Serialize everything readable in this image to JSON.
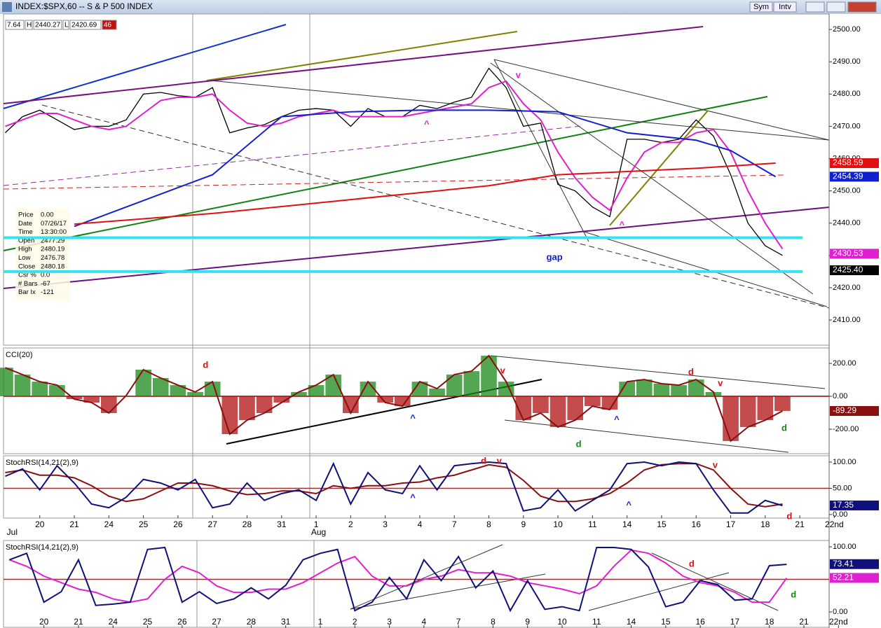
{
  "window": {
    "title": "INDEX:$SPX,60 -- S & P 500 INDEX",
    "buttons": [
      "Sym",
      "Intv"
    ]
  },
  "quote_bar": [
    "7.64",
    "H",
    "2440.27",
    "L",
    "2420.69",
    "46"
  ],
  "info_box": [
    [
      "Price",
      "0.00"
    ],
    [
      "Date",
      "07/26/17"
    ],
    [
      "Time",
      "13:30:00"
    ],
    [
      "Open",
      "2477.29"
    ],
    [
      "High",
      "2480.19"
    ],
    [
      "Low",
      "2476.78"
    ],
    [
      "Close",
      "2480.18"
    ],
    [
      "Csr %",
      "0.0"
    ],
    [
      "# Bars",
      "-67"
    ],
    [
      "Bar Ix",
      "-121"
    ]
  ],
  "chart_data": [
    {
      "type": "line",
      "xlim": [
        -1.05,
        22.85
      ],
      "ylim": [
        2402.2,
        2504.8
      ],
      "yticks": [
        {
          "value": 2500,
          "label": "2500.00"
        },
        {
          "value": 2490,
          "label": "2490.00"
        },
        {
          "value": 2480,
          "label": "2480.00"
        },
        {
          "value": 2470,
          "label": "2470.00"
        },
        {
          "value": 2460,
          "label": "2460.00"
        },
        {
          "value": 2450,
          "label": "2450.00"
        },
        {
          "value": 2440,
          "label": "2440.00"
        },
        {
          "value": 2430,
          "label": "2430.00"
        },
        {
          "value": 2420,
          "label": "2420.00"
        },
        {
          "value": 2410,
          "label": "2410.00"
        }
      ],
      "x": [
        -1,
        -0.5,
        0,
        0.5,
        1,
        1.5,
        2,
        2.5,
        3,
        3.5,
        4,
        4.5,
        5,
        5.5,
        6,
        6.5,
        7,
        7.5,
        8,
        8.5,
        9,
        9.5,
        10,
        10.5,
        11,
        11.5,
        12,
        12.5,
        13,
        13.5,
        14,
        14.5,
        15,
        15.5,
        16,
        16.5,
        17,
        17.5,
        18,
        18.5,
        19,
        19.5,
        20,
        20.5,
        21,
        21.5
      ],
      "hlines": [
        {
          "value": 2435.5,
          "color": "#33e4f0"
        },
        {
          "value": 2425,
          "color": "#33e4f0"
        }
      ],
      "series": [
        {
          "color": "#000000",
          "values": [
            2468,
            2473,
            2475,
            2472,
            2469,
            2470,
            2470,
            2472,
            2480,
            2480.5,
            2479.5,
            2479,
            2482,
            2468,
            2469.5,
            2470.5,
            2473,
            2475,
            2475.5,
            2475,
            2470,
            2475.5,
            2473,
            2473,
            2476.5,
            2475.5,
            2477.5,
            2479,
            2488,
            2482,
            2470,
            2471,
            2452,
            2450,
            2445,
            2442,
            2466,
            2466,
            2465,
            2466,
            2472,
            2467,
            2455,
            2440,
            2433,
            2430
          ],
          "last": {
            "value": 2425.4,
            "label": "2425.40"
          }
        },
        {
          "color": "#e020d0",
          "values": [
            2470,
            2472,
            2474,
            2474,
            2472,
            2470,
            2469,
            2470,
            2474,
            2478,
            2479,
            2479,
            2480,
            2475,
            2471,
            2470,
            2471,
            2473,
            2474,
            2475,
            2473,
            2473,
            2473,
            2473,
            2474,
            2475,
            2476,
            2477,
            2482,
            2484,
            2477,
            2472,
            2462,
            2454,
            2448,
            2444,
            2454,
            2462,
            2465,
            2465,
            2468,
            2469,
            2462,
            2450,
            2440,
            2432
          ],
          "last": 2430.53
        },
        {
          "color": "#1020d0",
          "x": [
            1,
            5,
            7,
            9,
            11,
            13,
            15,
            17,
            19,
            20,
            21.3
          ],
          "values": [
            2439,
            2455,
            2473,
            2474.5,
            2475,
            2475,
            2474.5,
            2468,
            2465.7,
            2462.5,
            2454.4
          ],
          "last": 2454.39
        },
        {
          "color": "#e01010",
          "x": [
            1,
            5,
            9,
            13,
            15,
            17,
            19,
            21.3
          ],
          "values": [
            2439.7,
            2443,
            2447.3,
            2451.6,
            2455,
            2456,
            2457,
            2458.6
          ],
          "last": 2458.59
        }
      ],
      "annotations": [
        {
          "text": "v",
          "x": 13.85,
          "y": 2485.7,
          "color": "#e020d0"
        },
        {
          "text": "^",
          "x": 11.2,
          "y": 2470.5,
          "color": "#e020d0"
        },
        {
          "text": "^",
          "x": 16.85,
          "y": 2439.3,
          "color": "#e020d0"
        },
        {
          "text": "gap",
          "x": 14.9,
          "y": 2429.3,
          "color": "#1020d0"
        }
      ]
    },
    {
      "type": "bar",
      "title": "CCI(20)",
      "xlim": [
        -1.05,
        22.85
      ],
      "ylim": [
        -349,
        294
      ],
      "yticks": [
        {
          "value": 200,
          "label": "200.00"
        },
        {
          "value": 0,
          "label": "0.00"
        },
        {
          "value": -200,
          "label": "-200.00"
        }
      ],
      "x": [
        -1,
        -0.5,
        0,
        0.5,
        1,
        1.5,
        2,
        2.5,
        3,
        3.5,
        4,
        4.5,
        5,
        5.5,
        6,
        6.5,
        7,
        7.5,
        8,
        8.5,
        9,
        9.5,
        10,
        10.5,
        11,
        11.5,
        12,
        12.5,
        13,
        13.5,
        14,
        14.5,
        15,
        15.5,
        16,
        16.5,
        17,
        17.5,
        18,
        18.5,
        19,
        19.5,
        20,
        20.5,
        21,
        21.5
      ],
      "hlines": [
        {
          "value": 0,
          "color": "#900000"
        }
      ],
      "series": [
        {
          "color": "#8a1010",
          "pos_color": "#1a8a1a",
          "neg_color": "#b01010",
          "values": [
            174,
            132,
            89,
            68,
            -17,
            -38,
            -102,
            4,
            162,
            111,
            68,
            26,
            89,
            -230,
            -145,
            -102,
            -38,
            26,
            68,
            132,
            -102,
            89,
            -38,
            -60,
            89,
            47,
            132,
            153,
            247,
            89,
            -145,
            -102,
            -187,
            -145,
            -60,
            -81,
            89,
            102,
            77,
            68,
            102,
            26,
            -272,
            -187,
            -145,
            -89
          ],
          "last": -89.29
        }
      ],
      "annotations": [
        {
          "text": "d",
          "x": 4.8,
          "y": 187,
          "color": "#e01010"
        },
        {
          "text": "^",
          "x": 10.8,
          "y": -136,
          "color": "#1020d0"
        },
        {
          "text": "v",
          "x": 13.4,
          "y": 153,
          "color": "#e01010"
        },
        {
          "text": "d",
          "x": 15.6,
          "y": -294,
          "color": "#108a10"
        },
        {
          "text": "^",
          "x": 16.7,
          "y": -145,
          "color": "#1020d0"
        },
        {
          "text": "d",
          "x": 18.85,
          "y": 145,
          "color": "#e01010"
        },
        {
          "text": "v",
          "x": 19.7,
          "y": 77,
          "color": "#e01010"
        },
        {
          "text": "d",
          "x": 21.55,
          "y": -196,
          "color": "#108a10"
        }
      ]
    },
    {
      "type": "line",
      "title": "StochRSI(14,21(2),9)",
      "xlim": [
        -1.05,
        22.85
      ],
      "ylim": [
        -6.7,
        112
      ],
      "yticks": [
        {
          "value": 100,
          "label": "100.00"
        },
        {
          "value": 50,
          "label": "50.00"
        },
        {
          "value": 0,
          "label": "0.00"
        }
      ],
      "xticks": [
        {
          "value": 0,
          "label": "20"
        },
        {
          "value": 1,
          "label": "21"
        },
        {
          "value": 2,
          "label": "24"
        },
        {
          "value": 3,
          "label": "25"
        },
        {
          "value": 4,
          "label": "26"
        },
        {
          "value": 5,
          "label": "27"
        },
        {
          "value": 6,
          "label": "28"
        },
        {
          "value": 7,
          "label": "31"
        },
        {
          "value": 8,
          "label": "1"
        },
        {
          "value": 9,
          "label": "2"
        },
        {
          "value": 10,
          "label": "3"
        },
        {
          "value": 11,
          "label": "4"
        },
        {
          "value": 12,
          "label": "7"
        },
        {
          "value": 13,
          "label": "8"
        },
        {
          "value": 14,
          "label": "9"
        },
        {
          "value": 15,
          "label": "10"
        },
        {
          "value": 16,
          "label": "11"
        },
        {
          "value": 17,
          "label": "14"
        },
        {
          "value": 18,
          "label": "15"
        },
        {
          "value": 19,
          "label": "16"
        },
        {
          "value": 20,
          "label": "17"
        },
        {
          "value": 21,
          "label": "18"
        },
        {
          "value": 22,
          "label": "21"
        },
        {
          "value": 23,
          "label": "22nd"
        }
      ],
      "month_labels": [
        {
          "value": -0.8,
          "label": "Jul"
        },
        {
          "value": 8.07,
          "label": "Aug"
        }
      ],
      "x": [
        -1,
        -0.5,
        0,
        0.5,
        1,
        1.5,
        2,
        2.5,
        3,
        3.5,
        4,
        4.5,
        5,
        5.5,
        6,
        6.5,
        7,
        7.5,
        8,
        8.5,
        9,
        9.5,
        10,
        10.5,
        11,
        11.5,
        12,
        12.5,
        13,
        13.5,
        14,
        14.5,
        15,
        15.5,
        16,
        16.5,
        17,
        17.5,
        18,
        18.5,
        19,
        19.5,
        20,
        20.5,
        21,
        21.5
      ],
      "hlines": [
        {
          "value": 50,
          "color": "#e01010"
        }
      ],
      "series": [
        {
          "color": "#8a1010",
          "values": [
            80,
            85,
            75,
            75,
            70,
            55,
            35,
            25,
            30,
            45,
            60,
            60,
            55,
            45,
            38,
            40,
            45,
            45,
            40,
            55,
            50,
            55,
            55,
            60,
            62,
            70,
            75,
            85,
            95,
            90,
            65,
            35,
            25,
            25,
            30,
            40,
            60,
            85,
            95,
            97,
            97,
            85,
            50,
            20,
            15,
            20
          ]
        },
        {
          "color": "#10107a",
          "values": [
            73,
            87,
            47,
            93,
            60,
            20,
            13,
            33,
            67,
            60,
            47,
            67,
            13,
            20,
            60,
            27,
            40,
            47,
            27,
            97,
            20,
            80,
            47,
            40,
            93,
            47,
            93,
            97,
            100,
            97,
            7,
            13,
            47,
            7,
            27,
            47,
            97,
            100,
            93,
            100,
            97,
            47,
            3,
            3,
            27,
            17
          ],
          "last": 17.35
        }
      ],
      "annotations": [
        {
          "text": "^",
          "x": 10.8,
          "y": 31,
          "color": "#1020d0"
        },
        {
          "text": "d",
          "x": 12.85,
          "y": 101,
          "color": "#e01010"
        },
        {
          "text": "v",
          "x": 13.3,
          "y": 101,
          "color": "#e01010"
        },
        {
          "text": "^",
          "x": 17.05,
          "y": 17,
          "color": "#1020d0"
        },
        {
          "text": "v",
          "x": 19.55,
          "y": 93,
          "color": "#e01010"
        },
        {
          "text": "d",
          "x": 21.7,
          "y": -4,
          "color": "#e01010"
        }
      ]
    },
    {
      "type": "line",
      "title": "StochRSI(14,21(2),9)",
      "xlim": [
        -1.17,
        22.73
      ],
      "ylim": [
        -24.7,
        109.7
      ],
      "yticks": [
        {
          "value": 100,
          "label": "100.00"
        },
        {
          "value": 0,
          "label": "0.00"
        }
      ],
      "xticks": [
        {
          "value": 0,
          "label": "20"
        },
        {
          "value": 1,
          "label": "21"
        },
        {
          "value": 2,
          "label": "24"
        },
        {
          "value": 3,
          "label": "25"
        },
        {
          "value": 4,
          "label": "26"
        },
        {
          "value": 5,
          "label": "27"
        },
        {
          "value": 6,
          "label": "28"
        },
        {
          "value": 7,
          "label": "31"
        },
        {
          "value": 8,
          "label": "1"
        },
        {
          "value": 9,
          "label": "2"
        },
        {
          "value": 10,
          "label": "3"
        },
        {
          "value": 11,
          "label": "4"
        },
        {
          "value": 12,
          "label": "7"
        },
        {
          "value": 13,
          "label": "8"
        },
        {
          "value": 14,
          "label": "9"
        },
        {
          "value": 15,
          "label": "10"
        },
        {
          "value": 16,
          "label": "11"
        },
        {
          "value": 17,
          "label": "14"
        },
        {
          "value": 18,
          "label": "15"
        },
        {
          "value": 19,
          "label": "16"
        },
        {
          "value": 20,
          "label": "17"
        },
        {
          "value": 21,
          "label": "18"
        },
        {
          "value": 22,
          "label": "21"
        },
        {
          "value": 23,
          "label": "22nd"
        }
      ],
      "x": [
        -1,
        -0.5,
        0,
        0.5,
        1,
        1.5,
        2,
        2.5,
        3,
        3.5,
        4,
        4.5,
        5,
        5.5,
        6,
        6.5,
        7,
        7.5,
        8,
        8.5,
        9,
        9.5,
        10,
        10.5,
        11,
        11.5,
        12,
        12.5,
        13,
        13.5,
        14,
        14.5,
        15,
        15.5,
        16,
        16.5,
        17,
        17.5,
        18,
        18.5,
        19,
        19.5,
        20,
        20.5,
        21,
        21.5
      ],
      "hlines": [
        {
          "value": 50,
          "color": "#e01010"
        }
      ],
      "series": [
        {
          "color": "#e020d0",
          "values": [
            80,
            70,
            55,
            45,
            35,
            30,
            20,
            15,
            20,
            50,
            70,
            60,
            40,
            30,
            30,
            35,
            35,
            45,
            60,
            75,
            85,
            55,
            40,
            40,
            50,
            55,
            65,
            60,
            60,
            55,
            45,
            40,
            35,
            28,
            40,
            70,
            95,
            90,
            75,
            55,
            45,
            40,
            30,
            15,
            15,
            52
          ],
          "last": 52.21
        },
        {
          "color": "#10107a",
          "values": [
            80,
            90,
            15,
            31,
            80,
            10,
            12,
            15,
            96,
            99,
            15,
            31,
            13,
            20,
            37,
            20,
            41,
            80,
            90,
            96,
            2,
            15,
            53,
            20,
            80,
            48,
            85,
            37,
            63,
            2,
            48,
            4,
            8,
            2,
            99,
            99,
            96,
            69,
            8,
            15,
            48,
            42,
            18,
            20,
            71,
            73
          ],
          "last": 73.41
        }
      ],
      "annotations": [
        {
          "text": "d",
          "x": 18.75,
          "y": 73,
          "color": "#e01010"
        },
        {
          "text": "d",
          "x": 21.7,
          "y": 26,
          "color": "#108a10"
        }
      ]
    }
  ]
}
